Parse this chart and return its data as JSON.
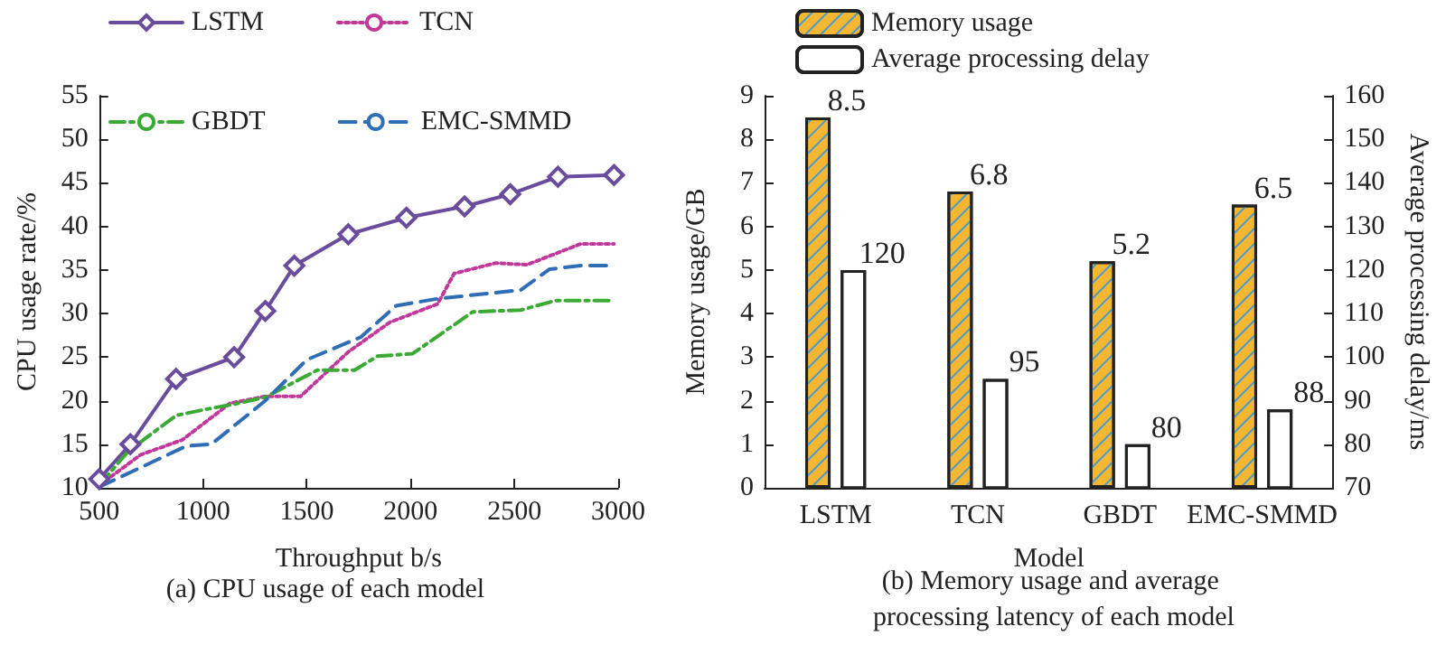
{
  "chart_data": [
    {
      "type": "line",
      "title": "(a) CPU usage of each model",
      "xlabel": "Throughput b/s",
      "ylabel": "CPU usage rate/%",
      "xlim": [
        500,
        3000
      ],
      "xticks": [
        500,
        1000,
        1500,
        2000,
        2500,
        3000
      ],
      "ylim": [
        10,
        55
      ],
      "yticks": [
        10,
        15,
        20,
        25,
        30,
        35,
        40,
        45,
        50,
        55
      ],
      "grid": false,
      "legend": "top",
      "series": [
        {
          "name": "LSTM",
          "color": "#6a4c9c",
          "marker": "diamond",
          "line_style": "solid",
          "x": [
            500,
            650,
            870,
            1150,
            1300,
            1440,
            1700,
            1980,
            2260,
            2480,
            2710,
            2980
          ],
          "values": [
            11,
            15,
            22.5,
            25,
            30.3,
            35.5,
            39.1,
            41,
            42.3,
            43.7,
            45.7,
            45.9
          ]
        },
        {
          "name": "TCN",
          "color": "#c0399a",
          "marker": "none",
          "line_style": "dotted",
          "x": [
            500,
            700,
            900,
            1130,
            1300,
            1470,
            1700,
            1900,
            2130,
            2210,
            2410,
            2560,
            2820,
            2980
          ],
          "values": [
            10.3,
            13.8,
            15.5,
            19.7,
            20.5,
            20.5,
            25.6,
            29,
            31.1,
            34.6,
            35.8,
            35.6,
            38,
            38
          ]
        },
        {
          "name": "GBDT",
          "color": "#3aaa35",
          "marker": "none",
          "line_style": "dashdot",
          "x": [
            500,
            640,
            870,
            1010,
            1150,
            1300,
            1550,
            1730,
            1840,
            2010,
            2300,
            2530,
            2700,
            2980
          ],
          "values": [
            10.3,
            14.2,
            18.3,
            19,
            19.6,
            20.4,
            23.5,
            23.5,
            25.1,
            25.4,
            30.2,
            30.4,
            31.5,
            31.5
          ]
        },
        {
          "name": "EMC-SMMD",
          "color": "#2f6db5",
          "marker": "none",
          "line_style": "dashed",
          "x": [
            500,
            920,
            1040,
            1300,
            1500,
            1760,
            1930,
            2130,
            2530,
            2670,
            2820,
            2980
          ],
          "values": [
            10.1,
            14.8,
            15,
            20,
            24.7,
            27.3,
            30.9,
            31.7,
            32.7,
            35.1,
            35.5,
            35.5
          ]
        }
      ]
    },
    {
      "type": "bar",
      "title": "(b) Memory usage and average processing latency of each model",
      "xlabel": "Model",
      "ylabel": "Memory usage/GB",
      "y2label": "Average processing delay/ms",
      "categories": [
        "LSTM",
        "TCN",
        "GBDT",
        "EMC-SMMD"
      ],
      "ylim": [
        0,
        9
      ],
      "yticks": [
        0,
        1,
        2,
        3,
        4,
        5,
        6,
        7,
        8,
        9
      ],
      "y2lim": [
        70,
        160
      ],
      "y2ticks": [
        70,
        80,
        90,
        100,
        110,
        120,
        130,
        140,
        150,
        160
      ],
      "grid": false,
      "legend": "top left",
      "data_labels": true,
      "series": [
        {
          "name": "Memory usage",
          "color": "#f5b731",
          "values": [
            8.5,
            6.8,
            5.2,
            6.5
          ]
        },
        {
          "name": "Average processing delay",
          "color": "#ffffff",
          "axis": "y2",
          "values": [
            120,
            95,
            80,
            88
          ]
        }
      ]
    }
  ]
}
